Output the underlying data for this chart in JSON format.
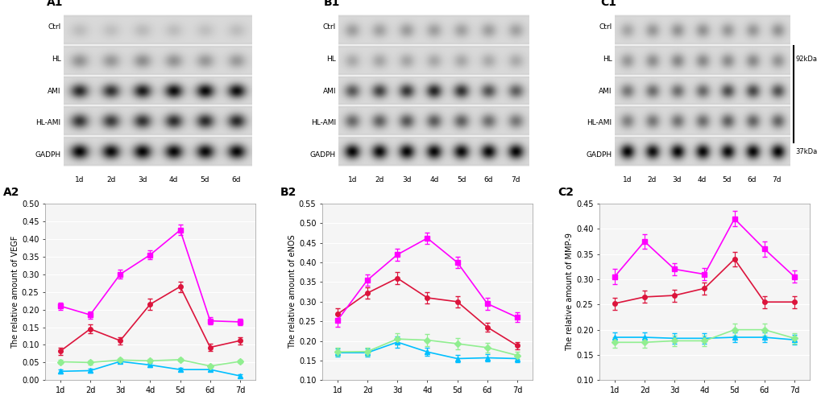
{
  "A2": {
    "ylabel": "The relative amount of VEGF",
    "ylim": [
      0,
      0.5
    ],
    "yticks": [
      0,
      0.05,
      0.1,
      0.15,
      0.2,
      0.25,
      0.3,
      0.35,
      0.4,
      0.45,
      0.5
    ],
    "xticklabels": [
      "1d",
      "2d",
      "3d",
      "4d",
      "5d",
      "6d",
      "7d"
    ],
    "Ctrl": {
      "y": [
        0.025,
        0.027,
        0.053,
        0.043,
        0.03,
        0.03,
        0.012
      ],
      "err": [
        0.005,
        0.005,
        0.005,
        0.005,
        0.004,
        0.004,
        0.004
      ]
    },
    "HL": {
      "y": [
        0.052,
        0.05,
        0.057,
        0.055,
        0.058,
        0.04,
        0.053
      ],
      "err": [
        0.005,
        0.005,
        0.005,
        0.005,
        0.005,
        0.005,
        0.005
      ]
    },
    "HL-AMI": {
      "y": [
        0.082,
        0.145,
        0.112,
        0.215,
        0.265,
        0.093,
        0.112
      ],
      "err": [
        0.01,
        0.012,
        0.01,
        0.015,
        0.015,
        0.01,
        0.01
      ]
    },
    "AMI": {
      "y": [
        0.21,
        0.185,
        0.3,
        0.355,
        0.425,
        0.168,
        0.165
      ],
      "err": [
        0.01,
        0.01,
        0.012,
        0.012,
        0.015,
        0.01,
        0.01
      ]
    },
    "legend_order": [
      "Ctrl",
      "HL",
      "HL-AMI",
      "AMI"
    ]
  },
  "B2": {
    "ylabel": "The relative amount of eNOS",
    "ylim": [
      0.1,
      0.55
    ],
    "yticks": [
      0.1,
      0.15,
      0.2,
      0.25,
      0.3,
      0.35,
      0.4,
      0.45,
      0.5,
      0.55
    ],
    "xticklabels": [
      "1d",
      "2d",
      "3d",
      "4d",
      "5d",
      "6d",
      "7d"
    ],
    "Ctrl": {
      "y": [
        0.17,
        0.17,
        0.197,
        0.172,
        0.155,
        0.157,
        0.155
      ],
      "err": [
        0.01,
        0.01,
        0.015,
        0.01,
        0.01,
        0.01,
        0.01
      ]
    },
    "HL": {
      "y": [
        0.172,
        0.173,
        0.205,
        0.202,
        0.193,
        0.183,
        0.163
      ],
      "err": [
        0.01,
        0.01,
        0.015,
        0.015,
        0.015,
        0.012,
        0.01
      ]
    },
    "HL-AMI": {
      "y": [
        0.268,
        0.322,
        0.36,
        0.31,
        0.3,
        0.235,
        0.188
      ],
      "err": [
        0.015,
        0.015,
        0.015,
        0.015,
        0.015,
        0.012,
        0.01
      ]
    },
    "AMI": {
      "y": [
        0.252,
        0.355,
        0.42,
        0.462,
        0.4,
        0.295,
        0.26
      ],
      "err": [
        0.015,
        0.015,
        0.015,
        0.015,
        0.015,
        0.015,
        0.012
      ]
    },
    "legend_order": [
      "Ctrl",
      "HL",
      "HL-AMI",
      "AMI"
    ]
  },
  "C2": {
    "ylabel": "The relative amount of MMP-9",
    "ylim": [
      0.1,
      0.45
    ],
    "yticks": [
      0.1,
      0.15,
      0.2,
      0.25,
      0.3,
      0.35,
      0.4,
      0.45
    ],
    "xticklabels": [
      "1d",
      "2d",
      "3d",
      "4d",
      "5d",
      "6d",
      "7d"
    ],
    "Ctrl": {
      "y": [
        0.185,
        0.185,
        0.183,
        0.183,
        0.185,
        0.185,
        0.18
      ],
      "err": [
        0.01,
        0.01,
        0.01,
        0.01,
        0.01,
        0.01,
        0.01
      ]
    },
    "HL": {
      "y": [
        0.175,
        0.175,
        0.178,
        0.178,
        0.2,
        0.2,
        0.183
      ],
      "err": [
        0.01,
        0.01,
        0.01,
        0.01,
        0.012,
        0.012,
        0.01
      ]
    },
    "HL-AMI": {
      "y": [
        0.252,
        0.265,
        0.268,
        0.282,
        0.34,
        0.255,
        0.255
      ],
      "err": [
        0.012,
        0.012,
        0.012,
        0.012,
        0.015,
        0.012,
        0.012
      ]
    },
    "AMI": {
      "y": [
        0.305,
        0.375,
        0.32,
        0.31,
        0.42,
        0.36,
        0.305
      ],
      "err": [
        0.015,
        0.015,
        0.012,
        0.012,
        0.015,
        0.015,
        0.012
      ]
    },
    "legend_order": [
      "Ctrl",
      "HL",
      "HL-AMI",
      "AMI"
    ]
  },
  "colors": {
    "Ctrl": "#00BFFF",
    "HL": "#90EE90",
    "HL-AMI": "#DC143C",
    "AMI": "#FF00FF"
  },
  "markers": {
    "Ctrl": "^",
    "HL": "D",
    "HL-AMI": "o",
    "AMI": "s"
  },
  "blot_A1": {
    "ncols": 6,
    "rows": {
      "Ctrl": [
        0.12,
        0.11,
        0.13,
        0.12,
        0.11,
        0.12
      ],
      "HL": [
        0.3,
        0.28,
        0.32,
        0.3,
        0.28,
        0.27
      ],
      "AMI": [
        0.75,
        0.72,
        0.82,
        0.88,
        0.9,
        0.88
      ],
      "HL-AMI": [
        0.7,
        0.68,
        0.72,
        0.74,
        0.75,
        0.76
      ],
      "GADPH": [
        0.92,
        0.9,
        0.92,
        0.91,
        0.9,
        0.91
      ]
    }
  },
  "blot_B1": {
    "ncols": 7,
    "rows": {
      "Ctrl": [
        0.25,
        0.24,
        0.26,
        0.25,
        0.24,
        0.25,
        0.24
      ],
      "HL": [
        0.2,
        0.22,
        0.22,
        0.21,
        0.21,
        0.2,
        0.2
      ],
      "AMI": [
        0.55,
        0.65,
        0.7,
        0.78,
        0.72,
        0.58,
        0.52
      ],
      "HL-AMI": [
        0.48,
        0.52,
        0.56,
        0.54,
        0.52,
        0.46,
        0.42
      ],
      "GADPH": [
        0.92,
        0.9,
        0.92,
        0.91,
        0.9,
        0.91,
        0.92
      ]
    }
  },
  "blot_C1": {
    "ncols": 7,
    "rows": {
      "Ctrl": [
        0.22,
        0.28,
        0.3,
        0.3,
        0.28,
        0.28,
        0.3
      ],
      "HL": [
        0.28,
        0.32,
        0.35,
        0.34,
        0.33,
        0.34,
        0.3
      ],
      "AMI": [
        0.42,
        0.46,
        0.46,
        0.48,
        0.6,
        0.62,
        0.58
      ],
      "HL-AMI": [
        0.38,
        0.42,
        0.44,
        0.46,
        0.52,
        0.5,
        0.5
      ],
      "GADPH": [
        0.92,
        0.88,
        0.92,
        0.91,
        0.9,
        0.91,
        0.92
      ]
    }
  }
}
